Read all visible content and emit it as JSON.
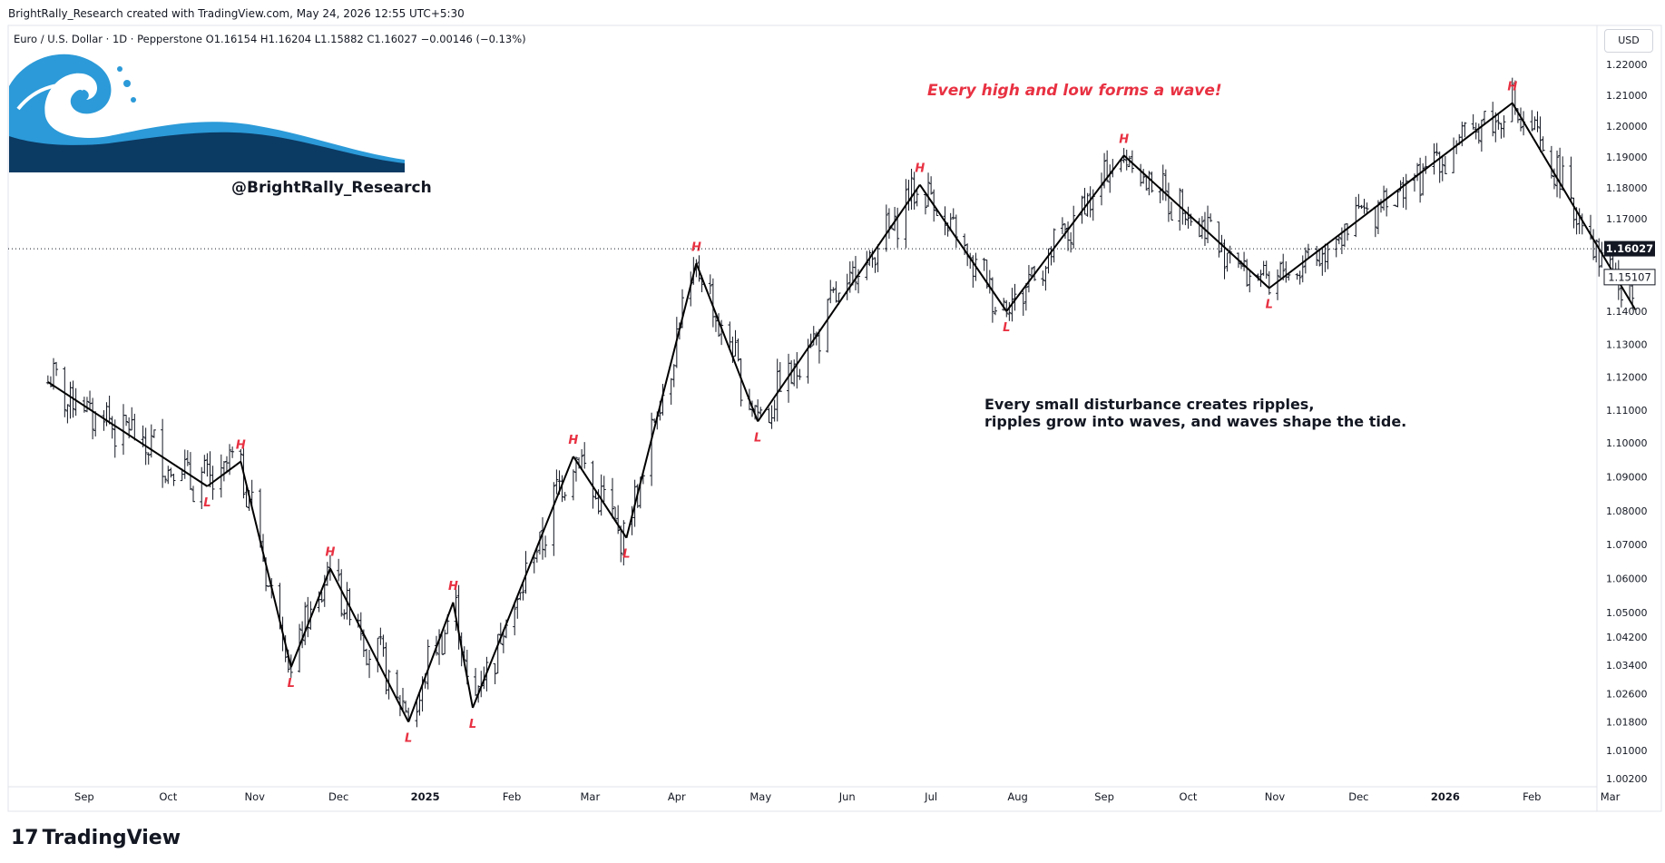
{
  "header": {
    "credit": "BrightRally_Research created with TradingView.com, May 24, 2026 12:55 UTC+5:30",
    "symbol_line": "Euro / U.S. Dollar · 1D · Pepperstone  O1.16154  H1.16204  L1.15882  C1.16027  −0.00146 (−0.13%)"
  },
  "watermark": {
    "handle": "@BrightRally_Research",
    "logo": "wave-logo"
  },
  "annotations": {
    "tagline": "Every high and low forms a wave!",
    "note_line1": "Every small disturbance creates ripples,",
    "note_line2": "ripples grow into waves, and waves shape the tide."
  },
  "price_axis": {
    "currency": "USD"
  },
  "footer": {
    "brand": "TradingView",
    "brand_icon": "tradingview-logo-icon"
  },
  "colors": {
    "candles": "#131722",
    "wave_line": "#000000",
    "labels": "#e83142",
    "tagline": "#e83142",
    "wave_dark": "#0b3a63",
    "wave_light": "#2c9ad8"
  },
  "chart_data": {
    "type": "ohlc",
    "symbol": "Euro / U.S. Dollar",
    "interval": "1D",
    "source": "Pepperstone",
    "last": {
      "open": 1.16154,
      "high": 1.16204,
      "low": 1.15882,
      "close": 1.16027,
      "change": -0.00146,
      "change_pct": -0.13
    },
    "price_labels": {
      "current": "1.16027",
      "secondary": "1.15107"
    },
    "y_ticks": [
      "1.22000",
      "1.21000",
      "1.20000",
      "1.19000",
      "1.18000",
      "1.17000",
      "1.16000",
      "1.15000",
      "1.14000",
      "1.13000",
      "1.12000",
      "1.11000",
      "1.10000",
      "1.09000",
      "1.08000",
      "1.07000",
      "1.06000",
      "1.05000",
      "1.04200",
      "1.03400",
      "1.02600",
      "1.01800",
      "1.01000",
      "1.00200"
    ],
    "x_ticks": [
      {
        "label": "Sep",
        "bold": false,
        "d": -14
      },
      {
        "label": "Oct",
        "bold": false,
        "d": 16
      },
      {
        "label": "Nov",
        "bold": false,
        "d": 47
      },
      {
        "label": "Dec",
        "bold": false,
        "d": 77
      },
      {
        "label": "2025",
        "bold": true,
        "d": 108
      },
      {
        "label": "Feb",
        "bold": false,
        "d": 139
      },
      {
        "label": "Mar",
        "bold": false,
        "d": 167
      },
      {
        "label": "Apr",
        "bold": false,
        "d": 198
      },
      {
        "label": "May",
        "bold": false,
        "d": 228
      },
      {
        "label": "Jun",
        "bold": false,
        "d": 259
      },
      {
        "label": "Jul",
        "bold": false,
        "d": 289
      },
      {
        "label": "Aug",
        "bold": false,
        "d": 320
      },
      {
        "label": "Sep",
        "bold": false,
        "d": 351
      },
      {
        "label": "Oct",
        "bold": false,
        "d": 381
      },
      {
        "label": "Nov",
        "bold": false,
        "d": 412
      },
      {
        "label": "Dec",
        "bold": false,
        "d": 442
      },
      {
        "label": "2026",
        "bold": true,
        "d": 473
      },
      {
        "label": "Feb",
        "bold": false,
        "d": 504
      },
      {
        "label": "Mar",
        "bold": false,
        "d": 532
      }
    ],
    "swings": [
      {
        "d": -27,
        "price": 1.1185,
        "label": ""
      },
      {
        "d": 30,
        "price": 1.0872,
        "label": "L"
      },
      {
        "d": 42,
        "price": 1.0945,
        "label": "H"
      },
      {
        "d": 60,
        "price": 1.0335,
        "label": "L"
      },
      {
        "d": 74,
        "price": 1.063,
        "label": "H"
      },
      {
        "d": 102,
        "price": 1.018,
        "label": "L"
      },
      {
        "d": 118,
        "price": 1.053,
        "label": "H"
      },
      {
        "d": 125,
        "price": 1.022,
        "label": "L"
      },
      {
        "d": 161,
        "price": 1.096,
        "label": "H"
      },
      {
        "d": 180,
        "price": 1.072,
        "label": "L"
      },
      {
        "d": 205,
        "price": 1.1555,
        "label": "H"
      },
      {
        "d": 227,
        "price": 1.1065,
        "label": "L"
      },
      {
        "d": 285,
        "price": 1.181,
        "label": "H"
      },
      {
        "d": 316,
        "price": 1.14,
        "label": "L"
      },
      {
        "d": 358,
        "price": 1.1905,
        "label": "H"
      },
      {
        "d": 410,
        "price": 1.1475,
        "label": "L"
      },
      {
        "d": 497,
        "price": 1.2075,
        "label": "H"
      },
      {
        "d": 541,
        "price": 1.1405,
        "label": ""
      }
    ]
  }
}
